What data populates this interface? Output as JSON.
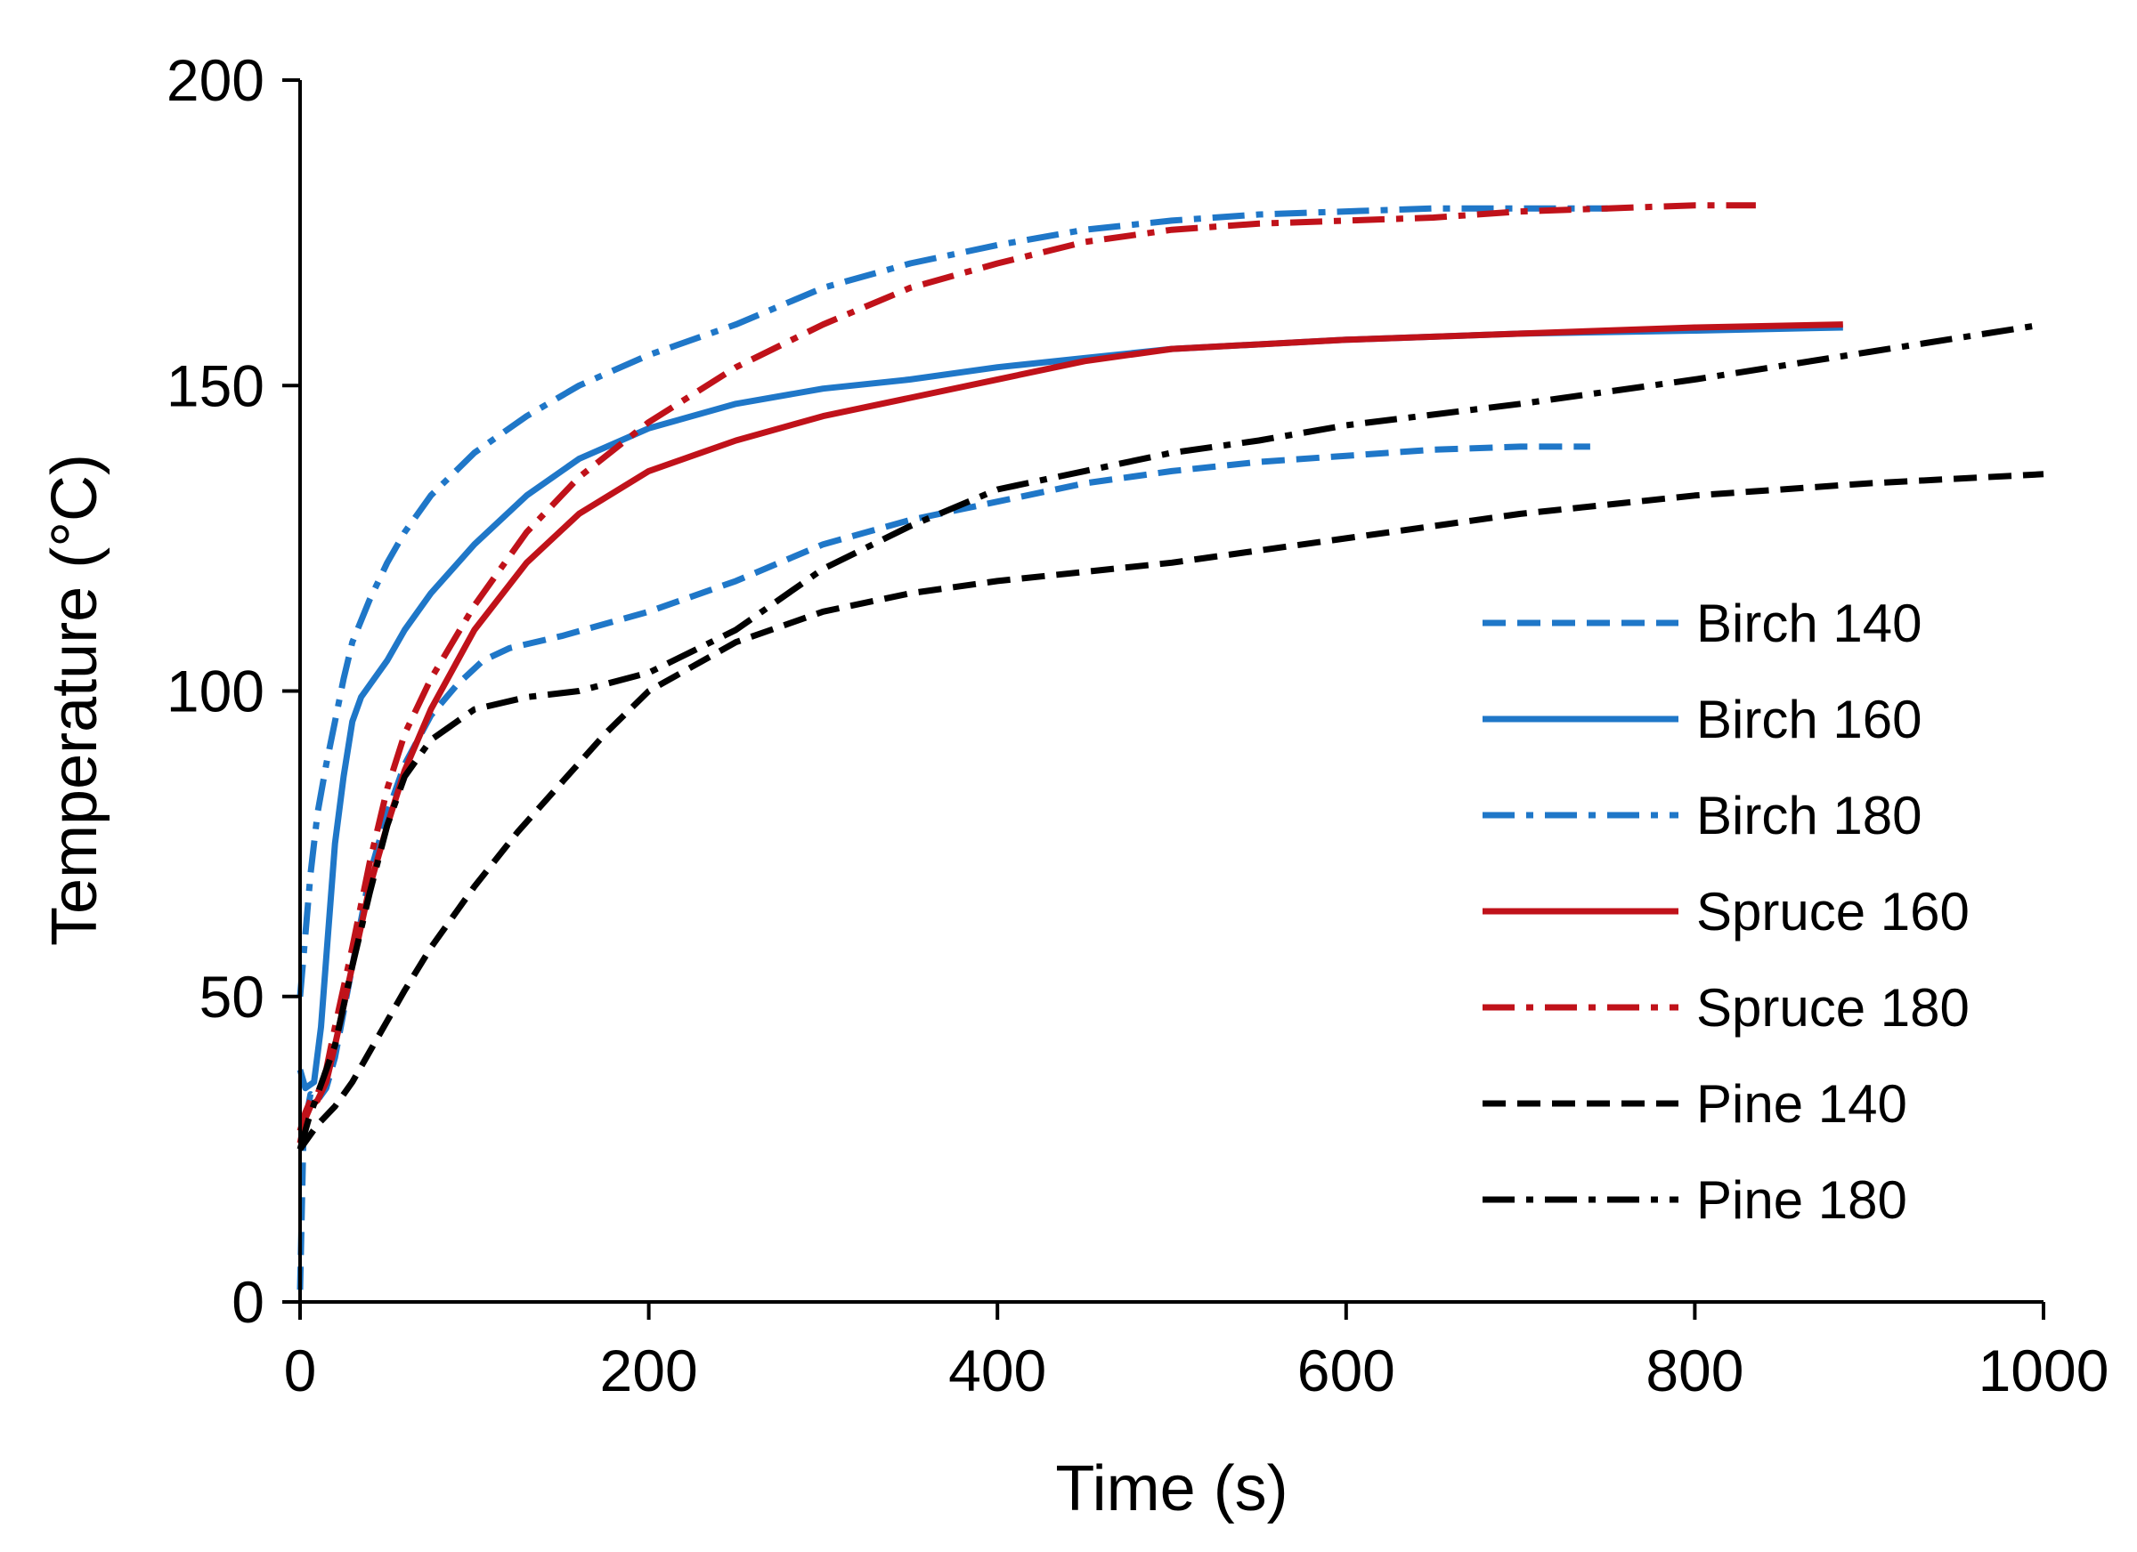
{
  "chart_data": {
    "type": "line",
    "title": "",
    "xlabel": "Time (s)",
    "ylabel": "Temperature (°C)",
    "xlim": [
      0,
      1000
    ],
    "ylim": [
      0,
      200
    ],
    "xticks": [
      0,
      200,
      400,
      600,
      800,
      1000
    ],
    "yticks": [
      0,
      50,
      100,
      150,
      200
    ],
    "xtick_labels": [
      "0",
      "200",
      "400",
      "600",
      "800",
      "1000"
    ],
    "ytick_labels": [
      "0",
      "50",
      "100",
      "150",
      "200"
    ],
    "grid": false,
    "legend_position": "right",
    "series": [
      {
        "name": "Birch 140",
        "color": "#1f77c8",
        "dash": "dashed",
        "points": [
          [
            0,
            2
          ],
          [
            2,
            28
          ],
          [
            6,
            34
          ],
          [
            10,
            33
          ],
          [
            15,
            35
          ],
          [
            20,
            40
          ],
          [
            30,
            55
          ],
          [
            40,
            70
          ],
          [
            50,
            80
          ],
          [
            60,
            88
          ],
          [
            75,
            96
          ],
          [
            90,
            101
          ],
          [
            105,
            105
          ],
          [
            120,
            107
          ],
          [
            150,
            109
          ],
          [
            200,
            113
          ],
          [
            250,
            118
          ],
          [
            300,
            124
          ],
          [
            350,
            128
          ],
          [
            400,
            131
          ],
          [
            450,
            134
          ],
          [
            500,
            136
          ],
          [
            550,
            137.5
          ],
          [
            600,
            138.5
          ],
          [
            650,
            139.5
          ],
          [
            700,
            140
          ],
          [
            740,
            140
          ]
        ]
      },
      {
        "name": "Birch 160",
        "color": "#1f77c8",
        "dash": "solid",
        "points": [
          [
            0,
            38
          ],
          [
            3,
            35
          ],
          [
            8,
            36
          ],
          [
            12,
            45
          ],
          [
            16,
            60
          ],
          [
            20,
            75
          ],
          [
            25,
            86
          ],
          [
            30,
            95
          ],
          [
            35,
            99
          ],
          [
            40,
            101
          ],
          [
            50,
            105
          ],
          [
            60,
            110
          ],
          [
            75,
            116
          ],
          [
            100,
            124
          ],
          [
            130,
            132
          ],
          [
            160,
            138
          ],
          [
            200,
            143
          ],
          [
            250,
            147
          ],
          [
            300,
            149.5
          ],
          [
            350,
            151
          ],
          [
            400,
            153
          ],
          [
            450,
            154.5
          ],
          [
            500,
            156
          ],
          [
            600,
            157.5
          ],
          [
            700,
            158.5
          ],
          [
            800,
            159
          ],
          [
            885,
            159.5
          ]
        ]
      },
      {
        "name": "Birch 180",
        "color": "#1f77c8",
        "dash": "dashdot",
        "points": [
          [
            0,
            50
          ],
          [
            3,
            60
          ],
          [
            6,
            70
          ],
          [
            10,
            80
          ],
          [
            15,
            88
          ],
          [
            20,
            95
          ],
          [
            25,
            102
          ],
          [
            30,
            108
          ],
          [
            40,
            115
          ],
          [
            50,
            121
          ],
          [
            60,
            126
          ],
          [
            75,
            132
          ],
          [
            100,
            139
          ],
          [
            130,
            145
          ],
          [
            160,
            150
          ],
          [
            200,
            155
          ],
          [
            250,
            160
          ],
          [
            300,
            166
          ],
          [
            350,
            170
          ],
          [
            400,
            173
          ],
          [
            450,
            175.5
          ],
          [
            500,
            177
          ],
          [
            550,
            178
          ],
          [
            600,
            178.5
          ],
          [
            650,
            179
          ],
          [
            700,
            179
          ],
          [
            750,
            179
          ]
        ]
      },
      {
        "name": "Spruce 160",
        "color": "#c0121a",
        "dash": "solid",
        "points": [
          [
            0,
            26
          ],
          [
            3,
            30
          ],
          [
            6,
            32
          ],
          [
            10,
            33
          ],
          [
            15,
            36
          ],
          [
            20,
            42
          ],
          [
            30,
            55
          ],
          [
            40,
            68
          ],
          [
            50,
            78
          ],
          [
            60,
            87
          ],
          [
            75,
            97
          ],
          [
            100,
            110
          ],
          [
            130,
            121
          ],
          [
            160,
            129
          ],
          [
            200,
            136
          ],
          [
            250,
            141
          ],
          [
            300,
            145
          ],
          [
            350,
            148
          ],
          [
            400,
            151
          ],
          [
            450,
            154
          ],
          [
            500,
            156
          ],
          [
            600,
            157.5
          ],
          [
            700,
            158.5
          ],
          [
            800,
            159.5
          ],
          [
            885,
            160
          ]
        ]
      },
      {
        "name": "Spruce 180",
        "color": "#c0121a",
        "dash": "dashdot",
        "points": [
          [
            0,
            28
          ],
          [
            3,
            31
          ],
          [
            6,
            33
          ],
          [
            10,
            34
          ],
          [
            15,
            38
          ],
          [
            20,
            45
          ],
          [
            30,
            58
          ],
          [
            40,
            72
          ],
          [
            50,
            84
          ],
          [
            60,
            93
          ],
          [
            75,
            102
          ],
          [
            100,
            114
          ],
          [
            130,
            126
          ],
          [
            160,
            135
          ],
          [
            200,
            144
          ],
          [
            250,
            153
          ],
          [
            300,
            160
          ],
          [
            350,
            166
          ],
          [
            400,
            170
          ],
          [
            450,
            173.5
          ],
          [
            500,
            175.5
          ],
          [
            550,
            176.5
          ],
          [
            600,
            177
          ],
          [
            650,
            177.5
          ],
          [
            700,
            178.5
          ],
          [
            750,
            179
          ],
          [
            800,
            179.5
          ],
          [
            835,
            179.5
          ]
        ]
      },
      {
        "name": "Pine 140",
        "color": "#000000",
        "dash": "dashed",
        "points": [
          [
            0,
            25
          ],
          [
            5,
            27
          ],
          [
            10,
            29
          ],
          [
            20,
            32
          ],
          [
            30,
            36
          ],
          [
            40,
            41
          ],
          [
            50,
            46
          ],
          [
            60,
            51
          ],
          [
            75,
            58
          ],
          [
            100,
            68
          ],
          [
            125,
            77
          ],
          [
            150,
            85
          ],
          [
            175,
            93
          ],
          [
            200,
            100
          ],
          [
            250,
            108
          ],
          [
            300,
            113
          ],
          [
            350,
            116
          ],
          [
            400,
            118
          ],
          [
            500,
            121
          ],
          [
            600,
            125
          ],
          [
            700,
            129
          ],
          [
            800,
            132
          ],
          [
            900,
            134
          ],
          [
            1000,
            135.5
          ]
        ]
      },
      {
        "name": "Pine 180",
        "color": "#000000",
        "dash": "dashdot",
        "points": [
          [
            0,
            25
          ],
          [
            5,
            30
          ],
          [
            10,
            34
          ],
          [
            20,
            42
          ],
          [
            30,
            55
          ],
          [
            40,
            67
          ],
          [
            50,
            78
          ],
          [
            60,
            86
          ],
          [
            75,
            92
          ],
          [
            100,
            97
          ],
          [
            130,
            99
          ],
          [
            160,
            100
          ],
          [
            200,
            103
          ],
          [
            250,
            110
          ],
          [
            300,
            120
          ],
          [
            350,
            127
          ],
          [
            400,
            133
          ],
          [
            450,
            136
          ],
          [
            500,
            139
          ],
          [
            550,
            141
          ],
          [
            600,
            143.5
          ],
          [
            700,
            147
          ],
          [
            800,
            151
          ],
          [
            900,
            155.5
          ],
          [
            1000,
            160
          ]
        ]
      }
    ]
  }
}
